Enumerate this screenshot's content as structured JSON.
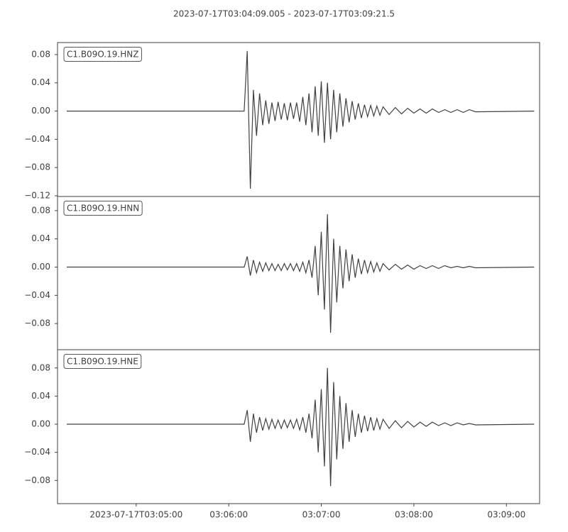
{
  "title": "2023-07-17T03:04:09.005  -  2023-07-17T03:09:21.5",
  "chart_data": [
    {
      "type": "line",
      "label": "C1.B09O.19.HNZ",
      "color": "#404040",
      "xlim": [
        "03:04:09.005",
        "03:09:21.5"
      ],
      "ylim": [
        -0.121,
        0.097
      ],
      "yticks": [
        0.08,
        0.04,
        {
          "value": 0,
          "label": "0.00"
        },
        {
          "value": -0.04,
          "label": "−0.04"
        },
        {
          "value": -0.08,
          "label": "−0.08"
        },
        {
          "value": -0.12,
          "label": "−0.12"
        }
      ],
      "x": [
        "03:04:15",
        "03:06:10",
        "03:06:12",
        "03:06:14",
        "03:06:16",
        "03:06:18",
        "03:06:20",
        "03:06:22",
        "03:06:24",
        "03:06:26",
        "03:06:28",
        "03:06:30",
        "03:06:32",
        "03:06:34",
        "03:06:36",
        "03:06:38",
        "03:06:40",
        "03:06:42",
        "03:06:44",
        "03:06:46",
        "03:06:48",
        "03:06:50",
        "03:06:52",
        "03:06:54",
        "03:06:56",
        "03:06:58",
        "03:07:00",
        "03:07:02",
        "03:07:04",
        "03:07:06",
        "03:07:08",
        "03:07:10",
        "03:07:12",
        "03:07:14",
        "03:07:16",
        "03:07:18",
        "03:07:20",
        "03:07:22",
        "03:07:24",
        "03:07:26",
        "03:07:28",
        "03:07:30",
        "03:07:32",
        "03:07:34",
        "03:07:36",
        "03:07:38",
        "03:07:40",
        "03:07:44",
        "03:07:48",
        "03:07:52",
        "03:07:56",
        "03:08:00",
        "03:08:04",
        "03:08:08",
        "03:08:12",
        "03:08:16",
        "03:08:20",
        "03:08:24",
        "03:08:28",
        "03:08:32",
        "03:08:36",
        "03:08:40",
        "03:09:18"
      ],
      "values": [
        0,
        0,
        0.085,
        -0.11,
        0.03,
        -0.035,
        0.025,
        -0.02,
        0.015,
        -0.018,
        0.012,
        -0.014,
        0.013,
        -0.012,
        0.011,
        -0.013,
        0.012,
        -0.011,
        0.012,
        -0.015,
        0.02,
        -0.02,
        0.025,
        -0.03,
        0.035,
        -0.035,
        0.042,
        -0.045,
        0.04,
        -0.04,
        0.03,
        -0.03,
        0.025,
        -0.022,
        0.018,
        -0.016,
        0.014,
        -0.012,
        0.011,
        -0.01,
        0.009,
        -0.008,
        0.008,
        -0.007,
        0.007,
        -0.006,
        0.006,
        -0.005,
        0.005,
        -0.004,
        0.004,
        -0.003,
        0.003,
        -0.003,
        0.003,
        -0.002,
        0.002,
        -0.002,
        0.002,
        -0.002,
        0.002,
        -0.001,
        0
      ]
    },
    {
      "type": "line",
      "label": "C1.B09O.19.HNN",
      "color": "#404040",
      "xlim": [
        "03:04:09.005",
        "03:09:21.5"
      ],
      "ylim": [
        -0.117,
        0.1
      ],
      "yticks": [
        0.08,
        0.04,
        {
          "value": 0,
          "label": "0.00"
        },
        {
          "value": -0.04,
          "label": "−0.04"
        },
        {
          "value": -0.08,
          "label": "−0.08"
        }
      ],
      "x": [
        "03:04:15",
        "03:06:10",
        "03:06:12",
        "03:06:14",
        "03:06:16",
        "03:06:18",
        "03:06:20",
        "03:06:22",
        "03:06:24",
        "03:06:26",
        "03:06:28",
        "03:06:30",
        "03:06:32",
        "03:06:34",
        "03:06:36",
        "03:06:38",
        "03:06:40",
        "03:06:42",
        "03:06:44",
        "03:06:46",
        "03:06:48",
        "03:06:50",
        "03:06:52",
        "03:06:54",
        "03:06:56",
        "03:06:58",
        "03:07:00",
        "03:07:02",
        "03:07:04",
        "03:07:06",
        "03:07:08",
        "03:07:10",
        "03:07:12",
        "03:07:14",
        "03:07:16",
        "03:07:18",
        "03:07:20",
        "03:07:22",
        "03:07:24",
        "03:07:26",
        "03:07:28",
        "03:07:30",
        "03:07:32",
        "03:07:34",
        "03:07:36",
        "03:07:38",
        "03:07:40",
        "03:07:44",
        "03:07:48",
        "03:07:52",
        "03:07:56",
        "03:08:00",
        "03:08:04",
        "03:08:08",
        "03:08:12",
        "03:08:16",
        "03:08:20",
        "03:08:24",
        "03:08:28",
        "03:08:32",
        "03:08:36",
        "03:08:40",
        "03:09:18"
      ],
      "values": [
        0,
        0,
        0.015,
        -0.012,
        0.01,
        -0.008,
        0.007,
        -0.006,
        0.006,
        -0.005,
        0.005,
        -0.005,
        0.004,
        -0.005,
        0.005,
        -0.004,
        0.005,
        -0.005,
        0.005,
        -0.006,
        0.007,
        -0.008,
        0.01,
        -0.015,
        0.03,
        -0.04,
        0.05,
        -0.06,
        0.075,
        -0.093,
        0.04,
        -0.05,
        0.03,
        -0.03,
        0.025,
        -0.02,
        0.018,
        -0.015,
        0.012,
        -0.01,
        0.01,
        -0.008,
        0.008,
        -0.007,
        0.006,
        -0.006,
        0.005,
        -0.004,
        0.004,
        -0.003,
        0.003,
        -0.003,
        0.002,
        -0.002,
        0.002,
        -0.002,
        0.002,
        -0.001,
        0.001,
        -0.001,
        0.001,
        -0.001,
        0
      ]
    },
    {
      "type": "line",
      "label": "C1.B09O.19.HNE",
      "color": "#404040",
      "xlim": [
        "03:04:09.005",
        "03:09:21.5"
      ],
      "ylim": [
        -0.113,
        0.106
      ],
      "yticks": [
        0.08,
        0.04,
        {
          "value": 0,
          "label": "0.00"
        },
        {
          "value": -0.04,
          "label": "−0.04"
        },
        {
          "value": -0.08,
          "label": "−0.08"
        }
      ],
      "xticks": [
        {
          "value": "03:05:00",
          "label": "2023-07-17T03:05:00"
        },
        "03:06:00",
        "03:07:00",
        "03:08:00",
        "03:09:00"
      ],
      "x": [
        "03:04:15",
        "03:06:10",
        "03:06:12",
        "03:06:14",
        "03:06:16",
        "03:06:18",
        "03:06:20",
        "03:06:22",
        "03:06:24",
        "03:06:26",
        "03:06:28",
        "03:06:30",
        "03:06:32",
        "03:06:34",
        "03:06:36",
        "03:06:38",
        "03:06:40",
        "03:06:42",
        "03:06:44",
        "03:06:46",
        "03:06:48",
        "03:06:50",
        "03:06:52",
        "03:06:54",
        "03:06:56",
        "03:06:58",
        "03:07:00",
        "03:07:02",
        "03:07:04",
        "03:07:06",
        "03:07:08",
        "03:07:10",
        "03:07:12",
        "03:07:14",
        "03:07:16",
        "03:07:18",
        "03:07:20",
        "03:07:22",
        "03:07:24",
        "03:07:26",
        "03:07:28",
        "03:07:30",
        "03:07:32",
        "03:07:34",
        "03:07:36",
        "03:07:38",
        "03:07:40",
        "03:07:44",
        "03:07:48",
        "03:07:52",
        "03:07:56",
        "03:08:00",
        "03:08:04",
        "03:08:08",
        "03:08:12",
        "03:08:16",
        "03:08:20",
        "03:08:24",
        "03:08:28",
        "03:08:32",
        "03:08:36",
        "03:08:40",
        "03:09:18"
      ],
      "values": [
        0,
        0,
        0.02,
        -0.025,
        0.015,
        -0.012,
        0.01,
        -0.009,
        0.008,
        -0.007,
        0.007,
        -0.006,
        0.006,
        -0.006,
        0.006,
        -0.005,
        0.006,
        -0.006,
        0.007,
        -0.008,
        0.01,
        -0.012,
        0.015,
        -0.02,
        0.035,
        -0.04,
        0.05,
        -0.06,
        0.08,
        -0.088,
        0.06,
        -0.05,
        0.04,
        -0.035,
        0.03,
        -0.025,
        0.02,
        -0.018,
        0.015,
        -0.012,
        0.012,
        -0.01,
        0.01,
        -0.009,
        0.008,
        -0.007,
        0.007,
        -0.006,
        0.005,
        -0.005,
        0.004,
        -0.004,
        0.003,
        -0.003,
        0.003,
        -0.002,
        0.002,
        -0.002,
        0.002,
        -0.001,
        0.001,
        -0.001,
        0
      ]
    }
  ]
}
